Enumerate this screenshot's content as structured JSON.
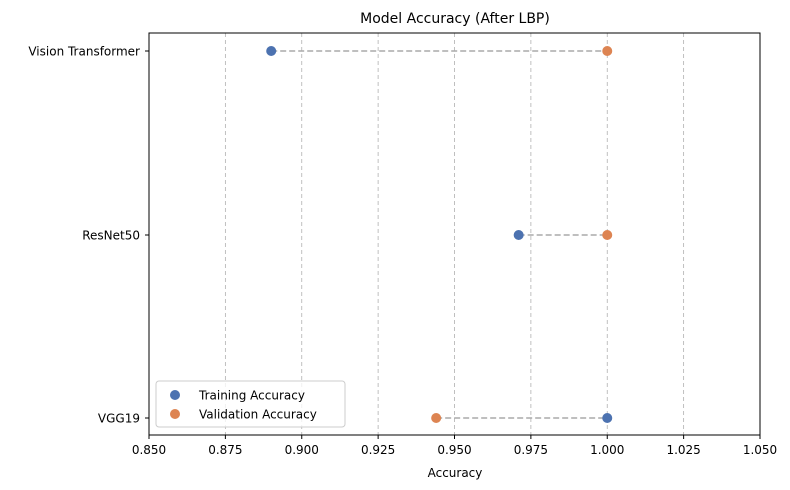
{
  "chart_data": {
    "type": "scatter",
    "title": "Model Accuracy (After LBP)",
    "xlabel": "Accuracy",
    "ylabel": "",
    "xlim": [
      0.85,
      1.05
    ],
    "x_ticks": [
      "0.850",
      "0.875",
      "0.900",
      "0.925",
      "0.950",
      "0.975",
      "1.000",
      "1.025",
      "1.050"
    ],
    "categories": [
      "Vision Transformer",
      "ResNet50",
      "VGG19"
    ],
    "series": [
      {
        "name": "Training Accuracy",
        "values": [
          0.89,
          0.971,
          1.0
        ],
        "color": "#4c72b0"
      },
      {
        "name": "Validation Accuracy",
        "values": [
          1.0,
          1.0,
          0.944
        ],
        "color": "#dd8452"
      }
    ],
    "connector_color": "#aaaaaa",
    "grid": "x-dashed",
    "legend_position": "lower-left"
  }
}
